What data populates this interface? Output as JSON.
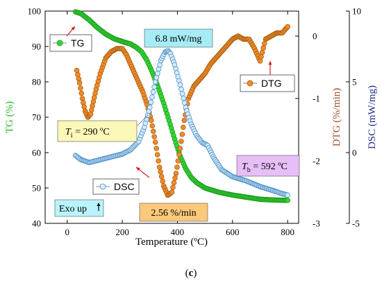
{
  "chart_data": {
    "type": "line",
    "xlabel": "Temperature (ºC)",
    "xlim": [
      -80,
      840
    ],
    "xticks": [
      0,
      200,
      400,
      600,
      800
    ],
    "y_axes": {
      "tg": {
        "label": "TG (%)",
        "lim": [
          40,
          100
        ],
        "ticks": [
          40,
          50,
          60,
          70,
          80,
          90,
          100
        ],
        "color": "#2db82d"
      },
      "dtg": {
        "label": "DTG (%/min)",
        "lim": [
          -3,
          0.4
        ],
        "ticks": [
          -3,
          -2,
          -1,
          0
        ],
        "color": "#a0522d"
      },
      "dsc": {
        "label": "DSC (mW/mg)",
        "lim": [
          -5,
          10
        ],
        "ticks": [
          -5,
          0,
          5,
          10
        ],
        "color": "#1f2d8a"
      }
    },
    "series": [
      {
        "name": "TG",
        "axis": "tg",
        "marker_fill": "#33d633",
        "marker_stroke": "#1f9a1f",
        "points": [
          [
            30,
            99.8
          ],
          [
            50,
            99.3
          ],
          [
            80,
            97.5
          ],
          [
            110,
            95.3
          ],
          [
            140,
            93.5
          ],
          [
            170,
            92.2
          ],
          [
            200,
            91.4
          ],
          [
            230,
            90.7
          ],
          [
            250,
            89.8
          ],
          [
            270,
            88.5
          ],
          [
            290,
            86.0
          ],
          [
            310,
            82.5
          ],
          [
            330,
            78.5
          ],
          [
            350,
            74.0
          ],
          [
            370,
            69.0
          ],
          [
            390,
            63.8
          ],
          [
            410,
            59.0
          ],
          [
            430,
            55.5
          ],
          [
            450,
            53.0
          ],
          [
            470,
            51.5
          ],
          [
            500,
            50.0
          ],
          [
            550,
            48.8
          ],
          [
            600,
            48.0
          ],
          [
            650,
            47.4
          ],
          [
            700,
            46.8
          ],
          [
            750,
            46.6
          ],
          [
            800,
            46.5
          ]
        ]
      },
      {
        "name": "DTG",
        "axis": "dtg",
        "marker_fill": "#f08c28",
        "marker_stroke": "#a65a12",
        "points": [
          [
            35,
            -0.55
          ],
          [
            45,
            -0.75
          ],
          [
            55,
            -1.0
          ],
          [
            65,
            -1.2
          ],
          [
            75,
            -1.3
          ],
          [
            85,
            -1.25
          ],
          [
            95,
            -1.05
          ],
          [
            105,
            -0.85
          ],
          [
            120,
            -0.6
          ],
          [
            140,
            -0.35
          ],
          [
            160,
            -0.25
          ],
          [
            180,
            -0.2
          ],
          [
            200,
            -0.2
          ],
          [
            215,
            -0.3
          ],
          [
            230,
            -0.45
          ],
          [
            245,
            -0.6
          ],
          [
            260,
            -0.75
          ],
          [
            275,
            -0.9
          ],
          [
            290,
            -1.1
          ],
          [
            305,
            -1.35
          ],
          [
            320,
            -1.7
          ],
          [
            335,
            -2.1
          ],
          [
            350,
            -2.4
          ],
          [
            365,
            -2.55
          ],
          [
            380,
            -2.5
          ],
          [
            395,
            -2.2
          ],
          [
            410,
            -1.8
          ],
          [
            425,
            -1.35
          ],
          [
            440,
            -1.0
          ],
          [
            460,
            -0.8
          ],
          [
            480,
            -0.7
          ],
          [
            500,
            -0.6
          ],
          [
            520,
            -0.45
          ],
          [
            540,
            -0.35
          ],
          [
            560,
            -0.25
          ],
          [
            580,
            -0.15
          ],
          [
            600,
            -0.05
          ],
          [
            620,
            0.0
          ],
          [
            640,
            -0.05
          ],
          [
            660,
            -0.05
          ],
          [
            680,
            -0.2
          ],
          [
            700,
            -0.4
          ],
          [
            720,
            -0.05
          ],
          [
            740,
            0.0
          ],
          [
            760,
            0.05
          ],
          [
            780,
            0.05
          ],
          [
            800,
            0.15
          ]
        ]
      },
      {
        "name": "DSC",
        "axis": "dsc",
        "marker_fill": "#d6ecfa",
        "marker_stroke": "#4a8ec8",
        "points": [
          [
            30,
            -0.2
          ],
          [
            50,
            -0.5
          ],
          [
            80,
            -0.7
          ],
          [
            120,
            -0.5
          ],
          [
            160,
            -0.3
          ],
          [
            200,
            -0.1
          ],
          [
            230,
            0.2
          ],
          [
            260,
            0.8
          ],
          [
            280,
            1.8
          ],
          [
            300,
            3.2
          ],
          [
            320,
            5.0
          ],
          [
            340,
            6.5
          ],
          [
            355,
            7.1
          ],
          [
            365,
            7.2
          ],
          [
            375,
            7.0
          ],
          [
            390,
            6.2
          ],
          [
            410,
            4.8
          ],
          [
            430,
            3.2
          ],
          [
            450,
            2.0
          ],
          [
            470,
            1.2
          ],
          [
            490,
            0.7
          ],
          [
            510,
            0.5
          ],
          [
            530,
            -0.3
          ],
          [
            560,
            -1.2
          ],
          [
            600,
            -1.7
          ],
          [
            650,
            -2.0
          ],
          [
            700,
            -2.4
          ],
          [
            750,
            -2.7
          ],
          [
            780,
            -2.9
          ],
          [
            800,
            -3.0
          ]
        ]
      }
    ],
    "legend": [
      {
        "label": "TG",
        "series": "TG"
      },
      {
        "label": "DSC",
        "series": "DSC"
      },
      {
        "label": "DTG",
        "series": "DTG"
      }
    ],
    "annotations": {
      "mw": "6.8 mW/mg",
      "rate": "2.56 %/min",
      "ti_var": "T",
      "ti_sub": "i",
      "ti_val": " = 290 ºC",
      "tb_var": "T",
      "tb_sub": "b",
      "tb_val": " = 592 ºC",
      "exo": "Exo up"
    },
    "panel_label": "c"
  }
}
